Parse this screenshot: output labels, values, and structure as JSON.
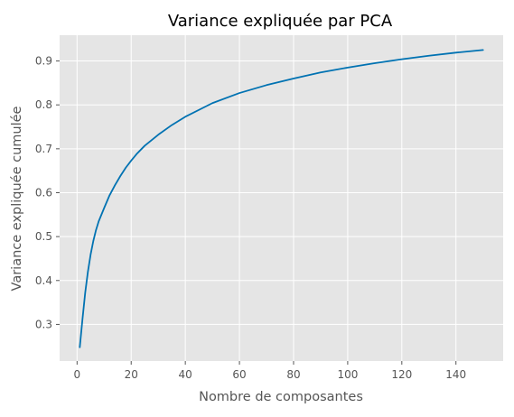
{
  "chart_data": {
    "type": "line",
    "title": "Variance expliquée par PCA",
    "xlabel": "Nombre de composantes",
    "ylabel": "Variance expliquée cumulée",
    "xlim": [
      -6.45,
      157.45
    ],
    "ylim": [
      0.2166,
      0.9587
    ],
    "xticks": [
      0,
      20,
      40,
      60,
      80,
      100,
      120,
      140
    ],
    "yticks": [
      0.3,
      0.4,
      0.5,
      0.6,
      0.7,
      0.8,
      0.9
    ],
    "xtick_labels": [
      "0",
      "20",
      "40",
      "60",
      "80",
      "100",
      "120",
      "140"
    ],
    "ytick_labels": [
      "0.3",
      "0.4",
      "0.5",
      "0.6",
      "0.7",
      "0.8",
      "0.9"
    ],
    "grid": true,
    "legend": "none",
    "colors": {
      "plot_background": "#e5e5e5",
      "grid": "#ffffff",
      "line": "#0072b2"
    },
    "series": [
      {
        "x": [
          1,
          2,
          3,
          4,
          5,
          6,
          7,
          8,
          10,
          12,
          14,
          16,
          18,
          20,
          22,
          25,
          30,
          35,
          40,
          50,
          60,
          70,
          80,
          90,
          100,
          110,
          120,
          130,
          140,
          150
        ],
        "values": [
          0.248,
          0.312,
          0.372,
          0.42,
          0.459,
          0.49,
          0.515,
          0.535,
          0.565,
          0.594,
          0.617,
          0.638,
          0.657,
          0.673,
          0.688,
          0.707,
          0.732,
          0.754,
          0.773,
          0.804,
          0.827,
          0.845,
          0.86,
          0.874,
          0.885,
          0.895,
          0.904,
          0.912,
          0.919,
          0.925
        ]
      }
    ]
  }
}
